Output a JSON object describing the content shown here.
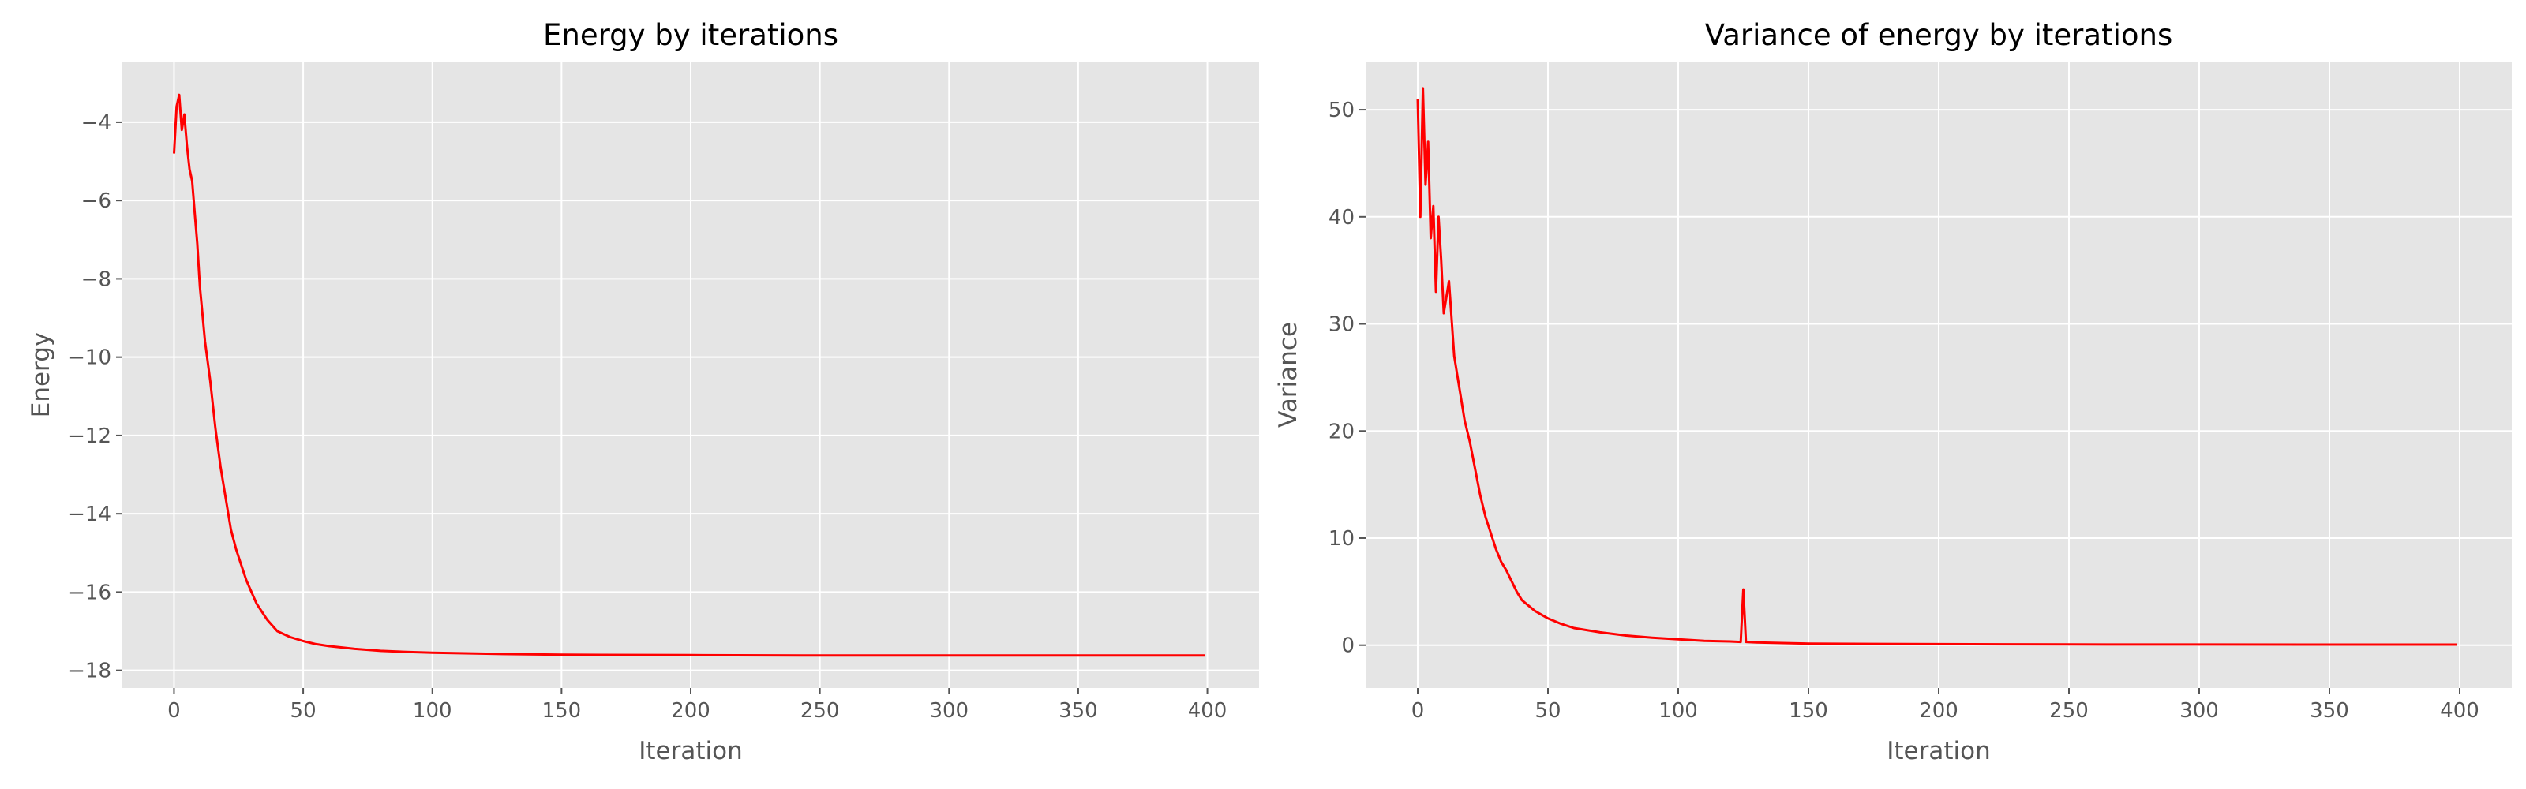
{
  "chart_data": [
    {
      "type": "line",
      "title": "Energy by iterations",
      "xlabel": "Iteration",
      "ylabel": "Energy",
      "xlim": [
        -20,
        420
      ],
      "ylim": [
        -18.45,
        -2.45
      ],
      "xticks": [
        0,
        50,
        100,
        150,
        200,
        250,
        300,
        350,
        400
      ],
      "xtick_labels": [
        "0",
        "50",
        "100",
        "150",
        "200",
        "250",
        "300",
        "350",
        "400"
      ],
      "yticks": [
        -4,
        -6,
        -8,
        -10,
        -12,
        -14,
        -16,
        -18
      ],
      "ytick_labels": [
        "−4",
        "−6",
        "−8",
        "−10",
        "−12",
        "−14",
        "−16",
        "−18"
      ],
      "grid": true,
      "legend": "none",
      "series_color": "#ff0000",
      "series": [
        {
          "x": [
            0,
            1,
            2,
            3,
            4,
            5,
            6,
            7,
            8,
            9,
            10,
            12,
            14,
            16,
            18,
            20,
            22,
            24,
            26,
            28,
            30,
            32,
            34,
            36,
            38,
            40,
            45,
            50,
            55,
            60,
            70,
            80,
            90,
            100,
            125,
            150,
            200,
            250,
            300,
            350,
            399
          ],
          "y": [
            -4.8,
            -3.6,
            -3.3,
            -4.2,
            -3.8,
            -4.6,
            -5.2,
            -5.5,
            -6.3,
            -7.1,
            -8.2,
            -9.6,
            -10.6,
            -11.8,
            -12.8,
            -13.6,
            -14.4,
            -14.9,
            -15.3,
            -15.7,
            -16.0,
            -16.3,
            -16.5,
            -16.7,
            -16.85,
            -17.0,
            -17.15,
            -17.25,
            -17.33,
            -17.38,
            -17.45,
            -17.5,
            -17.53,
            -17.55,
            -17.58,
            -17.6,
            -17.61,
            -17.62,
            -17.62,
            -17.62,
            -17.62
          ]
        }
      ]
    },
    {
      "type": "line",
      "title": "Variance of energy by iterations",
      "xlabel": "Iteration",
      "ylabel": "Variance",
      "xlim": [
        -20,
        420
      ],
      "ylim": [
        -4,
        54.5
      ],
      "xticks": [
        0,
        50,
        100,
        150,
        200,
        250,
        300,
        350,
        400
      ],
      "xtick_labels": [
        "0",
        "50",
        "100",
        "150",
        "200",
        "250",
        "300",
        "350",
        "400"
      ],
      "yticks": [
        0,
        10,
        20,
        30,
        40,
        50
      ],
      "ytick_labels": [
        "0",
        "10",
        "20",
        "30",
        "40",
        "50"
      ],
      "grid": true,
      "legend": "none",
      "series_color": "#ff0000",
      "series": [
        {
          "x": [
            0,
            1,
            2,
            3,
            4,
            5,
            6,
            7,
            8,
            9,
            10,
            12,
            14,
            16,
            18,
            20,
            22,
            24,
            26,
            28,
            30,
            32,
            34,
            36,
            38,
            40,
            45,
            50,
            55,
            60,
            70,
            80,
            90,
            100,
            110,
            120,
            124,
            125,
            126,
            130,
            140,
            150,
            175,
            200,
            225,
            250,
            300,
            350,
            399
          ],
          "y": [
            51.0,
            40.0,
            52.0,
            43.0,
            47.0,
            38.0,
            41.0,
            33.0,
            40.0,
            36.0,
            31.0,
            34.0,
            27.0,
            24.0,
            21.0,
            19.0,
            16.5,
            14.0,
            12.0,
            10.5,
            9.0,
            7.8,
            7.0,
            6.0,
            5.0,
            4.2,
            3.2,
            2.5,
            2.0,
            1.6,
            1.2,
            0.9,
            0.7,
            0.55,
            0.4,
            0.35,
            0.3,
            5.2,
            0.3,
            0.25,
            0.2,
            0.15,
            0.12,
            0.1,
            0.08,
            0.07,
            0.06,
            0.05,
            0.05
          ]
        }
      ]
    }
  ]
}
